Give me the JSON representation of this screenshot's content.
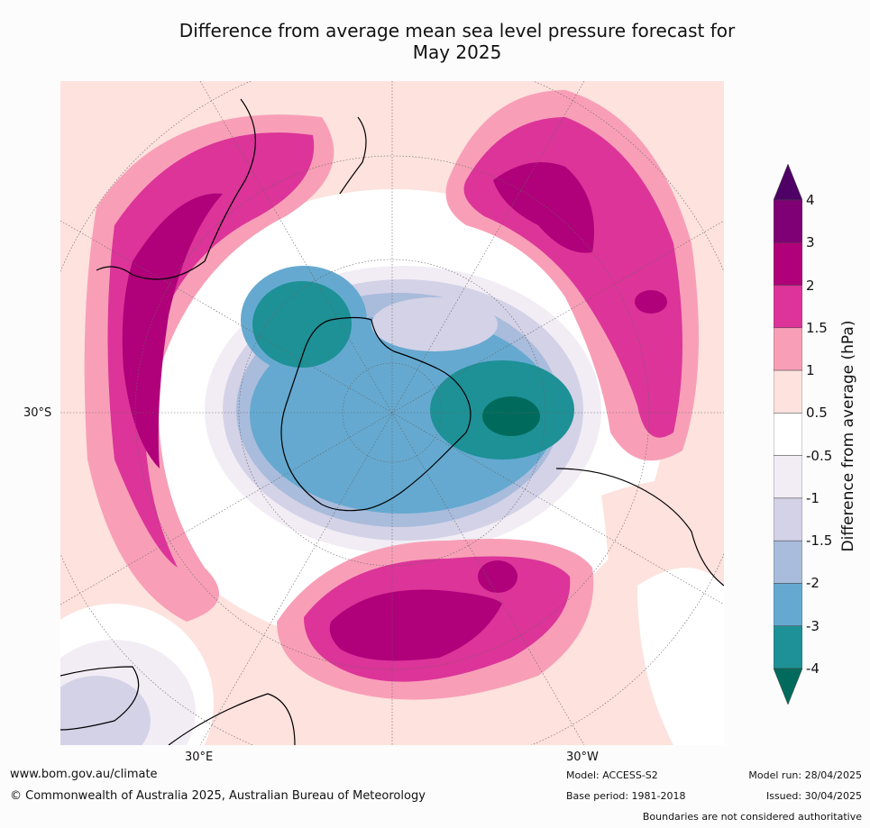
{
  "title": {
    "line1": "Difference from average mean sea level pressure forecast for",
    "line2": "May 2025"
  },
  "map": {
    "projection": "south polar stereographic",
    "graticule_labels": {
      "left": "30°S",
      "bottom_left": "30°E",
      "bottom_right": "30°W"
    },
    "colors": {
      "ocean_neutral": "#ffffff",
      "land_outline": "#000000"
    }
  },
  "legend": {
    "label": "Difference from average (hPa)",
    "ticks": [
      "4",
      "3",
      "2",
      "1.5",
      "1",
      "0.5",
      "-0.5",
      "-1",
      "-1.5",
      "-2",
      "-3",
      "-4"
    ],
    "bands": [
      {
        "range": ">4",
        "color": "#4e0066"
      },
      {
        "range": "3 to 4",
        "color": "#7e0074"
      },
      {
        "range": "2 to 3",
        "color": "#b0007a"
      },
      {
        "range": "1.5 to 2",
        "color": "#dc3499"
      },
      {
        "range": "1 to 1.5",
        "color": "#f89fb7"
      },
      {
        "range": "0.5 to 1",
        "color": "#fde2de"
      },
      {
        "range": "-0.5 to 0.5",
        "color": "#ffffff"
      },
      {
        "range": "-1 to -0.5",
        "color": "#f2edf5"
      },
      {
        "range": "-1.5 to -1",
        "color": "#d4d2e7"
      },
      {
        "range": "-2 to -1.5",
        "color": "#a9bcdc"
      },
      {
        "range": "-3 to -2",
        "color": "#65a9d0"
      },
      {
        "range": "-4 to -3",
        "color": "#1d9196"
      },
      {
        "range": "<-4",
        "color": "#006b5c"
      }
    ]
  },
  "footer": {
    "website": "www.bom.gov.au/climate",
    "copyright": "© Commonwealth of Australia 2025, Australian Bureau of Meteorology",
    "model": "Model: ACCESS-S2",
    "base_period": "Base period: 1981-2018",
    "model_run": "Model run: 28/04/2025",
    "issued": "Issued: 30/04/2025",
    "disclaimer": "Boundaries are not considered authoritative"
  }
}
